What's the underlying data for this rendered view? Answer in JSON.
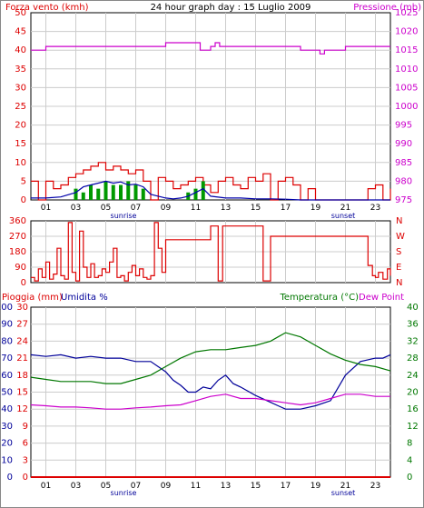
{
  "colors": {
    "background": "#ffffff",
    "frame": "#888888",
    "grid": "#cccccc",
    "axis_dark": "#000000",
    "wind": "#dd0000",
    "gust": "#009900",
    "wind_avg": "#0000aa",
    "pressure": "#cc00cc",
    "direction": "#dd0000",
    "rain": "#dd0000",
    "humidity": "#000099",
    "temperature": "#007700",
    "dewpoint": "#cc00cc"
  },
  "chart_data": [
    {
      "type": "line",
      "title": "24 hour graph day : 15 Luglio 2009",
      "ylabel_left": "Forza vento (kmh)",
      "ylabel_right": "Pressione (mb)",
      "x_ticks": [
        "01",
        "03",
        "05",
        "07",
        "09",
        "11",
        "13",
        "15",
        "17",
        "19",
        "21",
        "23"
      ],
      "sunrise_label": "sunrise",
      "sunset_label": "sunset",
      "y_left_ticks": [
        "0",
        "5",
        "10",
        "15",
        "20",
        "25",
        "30",
        "35",
        "40",
        "45",
        "50"
      ],
      "y_right_ticks": [
        "975",
        "980",
        "985",
        "990",
        "995",
        "1000",
        "1005",
        "1010",
        "1015",
        "1020",
        "1025"
      ],
      "ylim_left": [
        0,
        50
      ],
      "ylim_right": [
        975,
        1025
      ],
      "series": [
        {
          "key": "wind",
          "x": [
            0,
            0.5,
            1,
            1.5,
            2,
            2.5,
            3,
            3.5,
            4,
            4.5,
            5,
            5.5,
            6,
            6.5,
            7,
            7.5,
            8,
            8.5,
            9,
            9.5,
            10,
            10.5,
            11,
            11.5,
            12,
            12.5,
            13,
            13.5,
            14,
            14.5,
            15,
            15.5,
            16,
            16.5,
            17,
            17.5,
            18,
            18.5,
            19,
            19.5,
            20,
            20.5,
            21,
            21.5,
            22,
            22.5,
            23,
            23.5,
            24
          ],
          "y": [
            5,
            0,
            5,
            3,
            4,
            6,
            7,
            8,
            9,
            10,
            8,
            9,
            8,
            7,
            8,
            5,
            0,
            6,
            5,
            3,
            4,
            5,
            6,
            4,
            2,
            5,
            6,
            4,
            3,
            6,
            5,
            7,
            0,
            5,
            6,
            4,
            0,
            3,
            0,
            0,
            0,
            0,
            0,
            0,
            0,
            3,
            4,
            0,
            3
          ]
        },
        {
          "key": "gust",
          "x": [
            3,
            3.5,
            4,
            4.5,
            5,
            5.5,
            6,
            6.5,
            7,
            7.5,
            8,
            8.5,
            9,
            9.5,
            10,
            10.5,
            11,
            11.5,
            12
          ],
          "y": [
            3,
            2,
            4,
            3,
            5,
            4,
            4,
            5,
            4,
            3,
            0,
            0,
            0,
            0,
            0,
            2,
            3,
            5,
            0
          ]
        },
        {
          "key": "wind_avg",
          "x": [
            0,
            1,
            2,
            3,
            3.5,
            4,
            4.5,
            5,
            5.5,
            6,
            6.5,
            7,
            7.5,
            8,
            8.5,
            9,
            9.5,
            10,
            10.5,
            11,
            11.5,
            12,
            13,
            14,
            15,
            16,
            17,
            18,
            19,
            20,
            21,
            22,
            23,
            24
          ],
          "y": [
            0.5,
            0.5,
            0.8,
            2,
            3.5,
            4,
            4.5,
            5,
            4.5,
            4.8,
            4,
            4.2,
            3.5,
            1.5,
            1,
            0.5,
            0.3,
            0.5,
            1,
            2,
            3,
            1,
            0.5,
            0.5,
            0.3,
            0.3,
            0.2,
            0,
            0,
            0,
            0,
            0,
            0,
            0
          ]
        },
        {
          "key": "pressure",
          "x": [
            0,
            1,
            2,
            3,
            4,
            5,
            6,
            7,
            8,
            9,
            10,
            11,
            11.3,
            11.6,
            12,
            12.3,
            12.6,
            13,
            14,
            15,
            16,
            17,
            18,
            19,
            19.3,
            19.6,
            20,
            21,
            22,
            23,
            24
          ],
          "y": [
            1015,
            1016,
            1016,
            1016,
            1016,
            1016,
            1016,
            1016,
            1016,
            1017,
            1017,
            1017,
            1015,
            1015,
            1016,
            1017,
            1016,
            1016,
            1016,
            1016,
            1016,
            1016,
            1015,
            1015,
            1014,
            1015,
            1015,
            1016,
            1016,
            1016,
            1016
          ]
        }
      ]
    },
    {
      "type": "line",
      "ylabel_left": "",
      "y_left_ticks": [
        "0",
        "90",
        "180",
        "270",
        "360"
      ],
      "y_right_ticks": [
        "N",
        "E",
        "S",
        "W",
        "N"
      ],
      "ylim": [
        0,
        360
      ],
      "series": [
        {
          "key": "direction",
          "x": [
            0,
            0.25,
            0.5,
            0.75,
            1,
            1.25,
            1.5,
            1.75,
            2,
            2.25,
            2.5,
            2.75,
            3,
            3.25,
            3.5,
            3.75,
            4,
            4.25,
            4.5,
            4.75,
            5,
            5.25,
            5.5,
            5.75,
            6,
            6.25,
            6.5,
            6.75,
            7,
            7.25,
            7.5,
            7.75,
            8,
            8.25,
            8.5,
            8.75,
            9,
            10,
            11,
            11.5,
            12,
            12.5,
            12.8,
            13.5,
            14.5,
            15.5,
            16,
            17,
            18,
            19,
            20,
            21,
            22,
            22.5,
            22.8,
            23,
            23.2,
            23.5,
            23.8,
            24
          ],
          "y": [
            30,
            10,
            80,
            30,
            120,
            20,
            50,
            200,
            40,
            20,
            350,
            60,
            10,
            300,
            90,
            30,
            110,
            30,
            40,
            80,
            60,
            120,
            200,
            30,
            40,
            10,
            60,
            100,
            40,
            80,
            30,
            20,
            40,
            350,
            200,
            60,
            250,
            250,
            250,
            250,
            330,
            10,
            330,
            330,
            330,
            10,
            270,
            270,
            270,
            270,
            270,
            270,
            270,
            100,
            40,
            30,
            60,
            20,
            80,
            40
          ]
        }
      ]
    },
    {
      "type": "line",
      "ylabel_left": "Pioggia (mm)",
      "ylabel_left2": "Umidita %",
      "ylabel_right": "Temperatura (°C)",
      "ylabel_right2": "Dew Point",
      "y_rain_ticks": [
        "0",
        "3",
        "6",
        "9",
        "12",
        "15",
        "18",
        "21",
        "24",
        "27",
        "30"
      ],
      "y_hum_ticks": [
        "0",
        "10",
        "20",
        "30",
        "40",
        "50",
        "60",
        "70",
        "80",
        "90",
        "100"
      ],
      "y_temp_ticks": [
        "0",
        "4",
        "8",
        "12",
        "16",
        "20",
        "24",
        "28",
        "32",
        "36",
        "40"
      ],
      "ylim_rain": [
        0,
        30
      ],
      "ylim_humidity": [
        0,
        100
      ],
      "ylim_temperature": [
        0,
        40
      ],
      "series": [
        {
          "key": "humidity",
          "x": [
            0,
            1,
            2,
            3,
            4,
            5,
            6,
            7,
            8,
            9,
            9.5,
            10,
            10.5,
            11,
            11.5,
            12,
            12.5,
            13,
            13.5,
            14,
            15,
            16,
            16.5,
            17,
            17.5,
            18,
            19,
            20,
            21,
            22,
            23,
            23.5,
            24
          ],
          "y": [
            72,
            71,
            72,
            70,
            71,
            70,
            70,
            68,
            68,
            62,
            57,
            54,
            50,
            50,
            53,
            52,
            57,
            60,
            55,
            53,
            48,
            44,
            42,
            40,
            40,
            40,
            42,
            45,
            60,
            68,
            70,
            70,
            72
          ]
        },
        {
          "key": "temperature",
          "x": [
            0,
            1,
            2,
            3,
            4,
            5,
            6,
            7,
            8,
            9,
            10,
            11,
            12,
            13,
            14,
            15,
            16,
            16.5,
            17,
            18,
            19,
            20,
            21,
            22,
            23,
            24
          ],
          "y": [
            23.5,
            23,
            22.5,
            22.5,
            22.5,
            22,
            22,
            23,
            24,
            26,
            28,
            29.5,
            30,
            30,
            30.5,
            31,
            32,
            33,
            34,
            33,
            31,
            29,
            27.5,
            26.5,
            26,
            25
          ]
        },
        {
          "key": "dewpoint",
          "x": [
            0,
            1,
            2,
            3,
            4,
            5,
            6,
            7,
            8,
            9,
            10,
            11,
            12,
            13,
            14,
            15,
            16,
            17,
            18,
            19,
            20,
            21,
            22,
            23,
            24
          ],
          "y": [
            17,
            16.8,
            16.5,
            16.5,
            16.3,
            16,
            16,
            16.3,
            16.5,
            16.8,
            17,
            18,
            19,
            19.5,
            18.5,
            18.5,
            18,
            17.5,
            17,
            17.5,
            18.5,
            19.5,
            19.5,
            19,
            19
          ]
        },
        {
          "key": "rain",
          "x": [
            0,
            24
          ],
          "y": [
            0,
            0
          ]
        }
      ]
    }
  ]
}
